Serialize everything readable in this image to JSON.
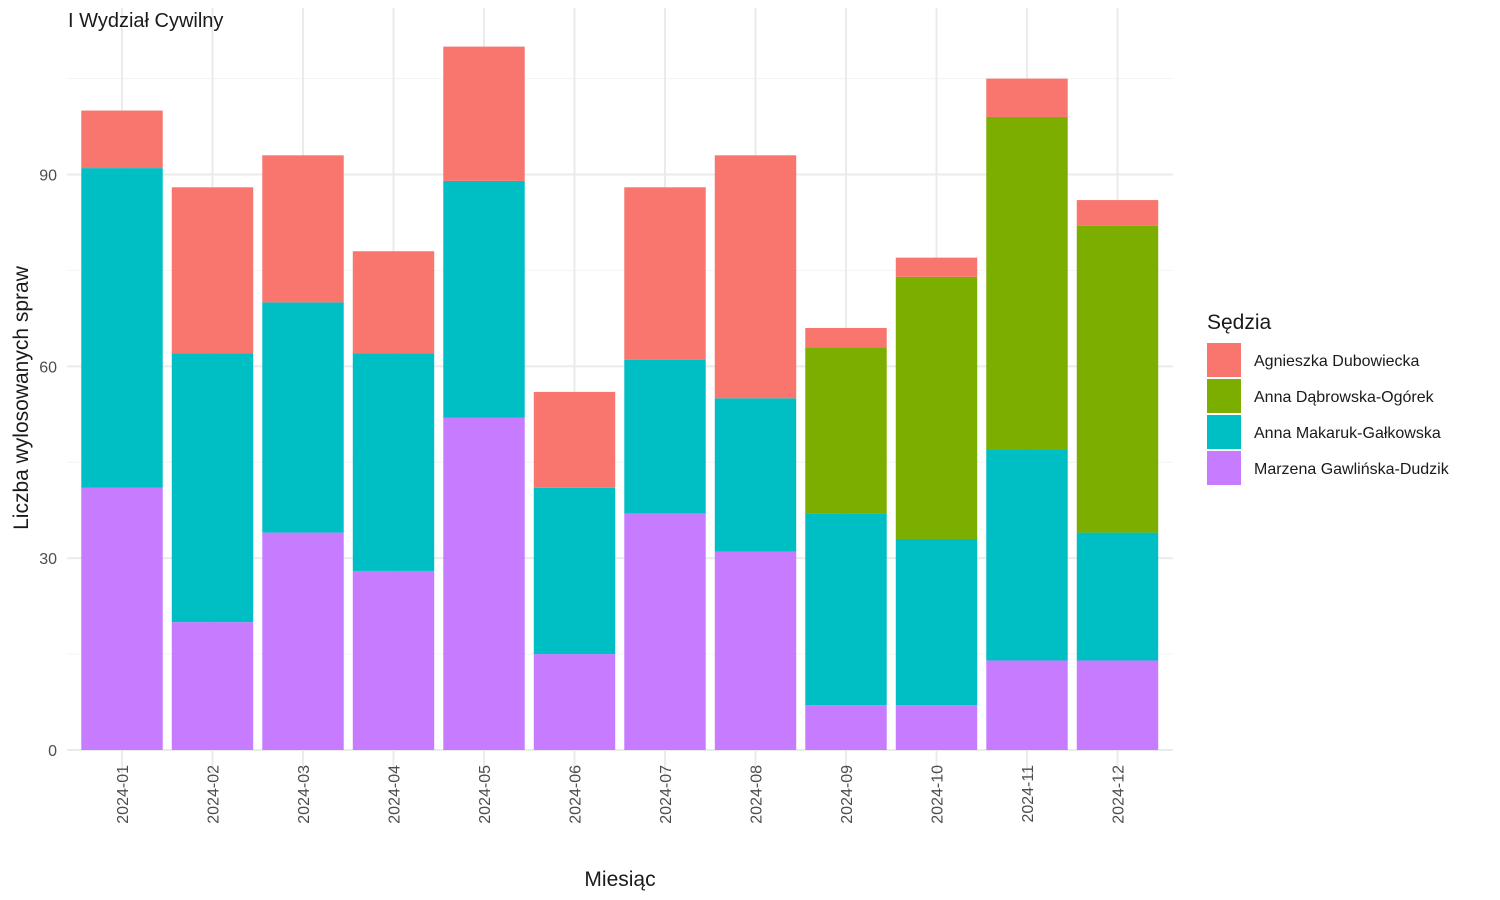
{
  "chart_data": {
    "type": "bar",
    "stacked": true,
    "title": "I Wydział Cywilny",
    "xlabel": "Miesiąc",
    "ylabel": "Liczba wylosowanych spraw",
    "ylim": [
      0,
      112
    ],
    "yticks": [
      0,
      30,
      60,
      90
    ],
    "grid": true,
    "legend_position": "right",
    "legend_title": "Sędzia",
    "categories": [
      "2024-01",
      "2024-02",
      "2024-03",
      "2024-04",
      "2024-05",
      "2024-06",
      "2024-07",
      "2024-08",
      "2024-09",
      "2024-10",
      "2024-11",
      "2024-12"
    ],
    "series": [
      {
        "name": "Agnieszka Dubowiecka",
        "color": "#F8766D",
        "values": [
          9,
          26,
          23,
          16,
          21,
          15,
          27,
          38,
          3,
          3,
          6,
          4
        ]
      },
      {
        "name": "Anna Dąbrowska-Ogórek",
        "color": "#7CAE00",
        "values": [
          0,
          0,
          0,
          0,
          0,
          0,
          0,
          0,
          26,
          41,
          52,
          48
        ]
      },
      {
        "name": "Anna Makaruk-Gałkowska",
        "color": "#00BFC4",
        "values": [
          50,
          42,
          36,
          34,
          37,
          26,
          24,
          24,
          30,
          26,
          33,
          20
        ]
      },
      {
        "name": "Marzena Gawlińska-Dudzik",
        "color": "#C77CFF",
        "values": [
          41,
          20,
          34,
          28,
          52,
          15,
          37,
          31,
          7,
          7,
          14,
          14
        ]
      }
    ]
  }
}
